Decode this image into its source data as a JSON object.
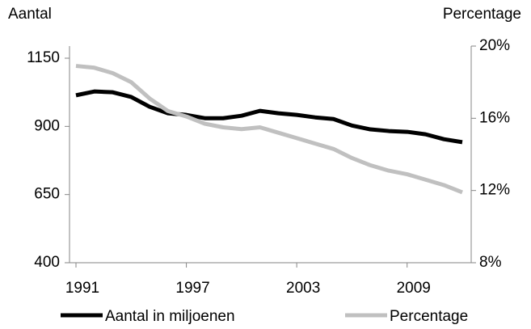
{
  "chart_data": {
    "type": "line",
    "y_label": "Aantal",
    "y2_label": "Percentage",
    "x": [
      1991,
      1992,
      1993,
      1994,
      1995,
      1996,
      1997,
      1998,
      1999,
      2000,
      2001,
      2002,
      2003,
      2004,
      2005,
      2006,
      2007,
      2008,
      2009,
      2010,
      2011,
      2012
    ],
    "xlim": [
      1991,
      2012
    ],
    "xticks": [
      1991,
      1997,
      2003,
      2009
    ],
    "ylim": [
      400,
      1150
    ],
    "yticks": [
      400,
      650,
      900,
      1150
    ],
    "y2lim": [
      8,
      20
    ],
    "y2ticks": [
      {
        "value": 8,
        "label": "8%"
      },
      {
        "value": 12,
        "label": "12%"
      },
      {
        "value": 16,
        "label": "16%"
      },
      {
        "value": 20,
        "label": "20%"
      }
    ],
    "legend": "bottom",
    "series": [
      {
        "name": "Aantal in miljoenen",
        "color": "#000000",
        "values": [
          1014,
          1028,
          1025,
          1008,
          972,
          948,
          942,
          930,
          930,
          939,
          957,
          948,
          942,
          933,
          927,
          903,
          889,
          883,
          880,
          871,
          853,
          842
        ]
      },
      {
        "name": "Percentage",
        "color": "#c0c0c0",
        "axis": "y2",
        "values": [
          18.9,
          18.8,
          18.5,
          18.0,
          17.1,
          16.4,
          16.1,
          15.7,
          15.5,
          15.4,
          15.5,
          15.2,
          14.9,
          14.6,
          14.3,
          13.8,
          13.4,
          13.1,
          12.9,
          12.6,
          12.3,
          11.9
        ]
      }
    ]
  }
}
